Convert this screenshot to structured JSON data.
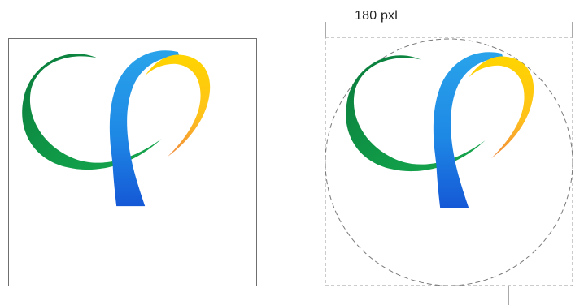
{
  "spec": {
    "dimension_label": "180 pxl"
  },
  "colors": {
    "green": "#0f9a4a",
    "green_dark": "#0b7a3c",
    "blue": "#1e88e5",
    "blue_deep": "#1565d8",
    "yellow": "#ffcc00",
    "orange": "#f39a3c",
    "frame_border": "#6f6f6f",
    "guide_dash": "#8a8a8a",
    "tick": "#555555"
  },
  "icons": {
    "logo": "heart-ribbon-logo"
  }
}
